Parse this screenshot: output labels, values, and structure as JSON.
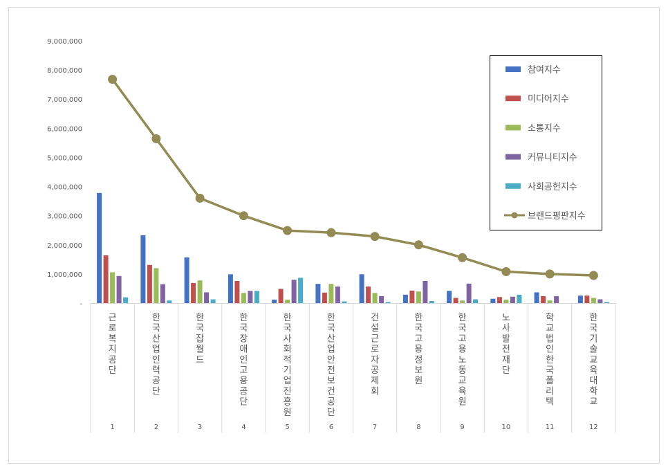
{
  "chart_data": {
    "type": "bar",
    "title": "",
    "xlabel": "",
    "ylabel": "",
    "ylim": [
      0,
      9000000
    ],
    "yticks": [
      0,
      1000000,
      2000000,
      3000000,
      4000000,
      5000000,
      6000000,
      7000000,
      8000000,
      9000000
    ],
    "ytick_labels": [
      "-",
      "1,000,000",
      "2,000,000",
      "3,000,000",
      "4,000,000",
      "5,000,000",
      "6,000,000",
      "7,000,000",
      "8,000,000",
      "9,000,000"
    ],
    "grid": false,
    "legend_position": "top-right",
    "categories": [
      "1",
      "2",
      "3",
      "4",
      "5",
      "6",
      "7",
      "8",
      "9",
      "10",
      "11",
      "12"
    ],
    "category_names": [
      "근로복지공단",
      "한국산업인력공단",
      "한국잡월드",
      "한국장애인고용공단",
      "한국사회적기업진흥원",
      "한국산업안전보건공단",
      "건설근로자공제회",
      "한국고용정보원",
      "한국고용노동교육원",
      "노사발전재단",
      "학교법인한국폴리텍",
      "한국기술교육대학교"
    ],
    "series": [
      {
        "name": "참여지수",
        "type": "bar",
        "color": "#4472C4",
        "values": [
          3780000,
          2330000,
          1570000,
          990000,
          120000,
          660000,
          990000,
          290000,
          420000,
          150000,
          370000,
          260000
        ]
      },
      {
        "name": "미디어지수",
        "type": "bar",
        "color": "#C0504D",
        "values": [
          1640000,
          1310000,
          690000,
          760000,
          490000,
          360000,
          570000,
          430000,
          180000,
          210000,
          240000,
          260000
        ]
      },
      {
        "name": "소통지수",
        "type": "bar",
        "color": "#9BBB59",
        "values": [
          1060000,
          1200000,
          780000,
          350000,
          120000,
          660000,
          350000,
          400000,
          90000,
          120000,
          90000,
          180000
        ]
      },
      {
        "name": "커뮤니티지수",
        "type": "bar",
        "color": "#8064A2",
        "values": [
          930000,
          650000,
          370000,
          420000,
          800000,
          570000,
          240000,
          760000,
          670000,
          220000,
          240000,
          130000
        ]
      },
      {
        "name": "사회공헌지수",
        "type": "bar",
        "color": "#4BACC6",
        "values": [
          200000,
          90000,
          130000,
          420000,
          870000,
          60000,
          40000,
          70000,
          130000,
          290000,
          0,
          40000
        ]
      },
      {
        "name": "브랜드평판지수",
        "type": "line",
        "color": "#948A54",
        "values": [
          7680000,
          5640000,
          3600000,
          3000000,
          2490000,
          2420000,
          2290000,
          2000000,
          1560000,
          1080000,
          1000000,
          950000
        ]
      }
    ]
  }
}
